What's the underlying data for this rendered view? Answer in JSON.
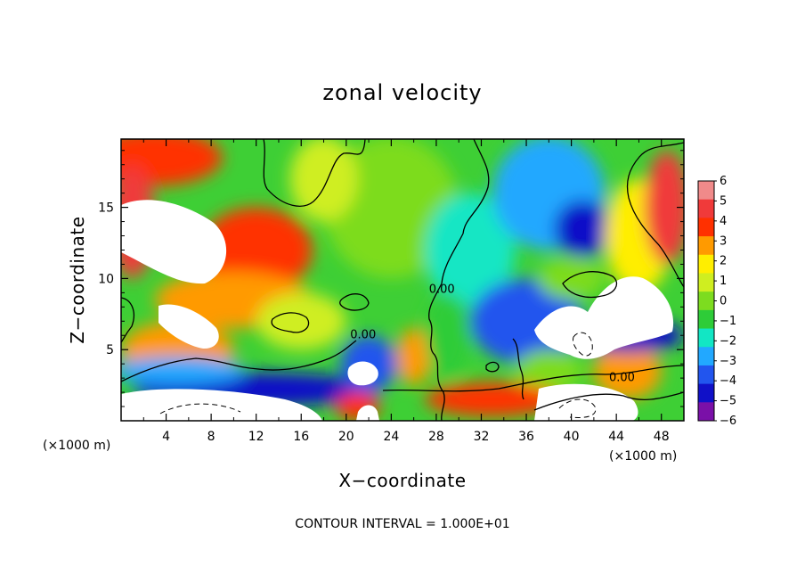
{
  "chart_data": {
    "type": "heatmap",
    "title": "zonal velocity",
    "xlabel": "X−coordinate",
    "ylabel": "Z−coordinate",
    "x_unit": "(×1000 m)",
    "x_unit_right": "(×1000 m)",
    "xlim": [
      0,
      50
    ],
    "ylim": [
      0,
      19.8
    ],
    "x_ticks": [
      4,
      8,
      12,
      16,
      20,
      24,
      28,
      32,
      36,
      40,
      44,
      48
    ],
    "y_ticks": [
      5,
      10,
      15
    ],
    "x_tick_labels": [
      "4",
      "8",
      "12",
      "16",
      "20",
      "24",
      "28",
      "32",
      "36",
      "40",
      "44",
      "48"
    ],
    "y_tick_labels": [
      "5",
      "10",
      "15"
    ],
    "colorbar": {
      "min": -6,
      "max": 6,
      "ticks": [
        6,
        5,
        4,
        3,
        2,
        1,
        0,
        -1,
        -2,
        -3,
        -4,
        -5,
        -6
      ],
      "tick_labels": [
        "6",
        "5",
        "4",
        "3",
        "2",
        "1",
        "0",
        "−1",
        "−2",
        "−3",
        "−4",
        "−5",
        "−6"
      ],
      "colors": [
        "#f08a8a",
        "#f03a3a",
        "#ff3000",
        "#ff9a00",
        "#ffee00",
        "#cfee20",
        "#7ddc1f",
        "#2ecc38",
        "#12e6c4",
        "#22a8ff",
        "#2255ee",
        "#1010c8",
        "#7a10a8"
      ]
    },
    "contour_labels": [
      {
        "text": "0.00",
        "x": 21.5,
        "y": 5.8
      },
      {
        "text": "0.00",
        "x": 28.5,
        "y": 9.0
      },
      {
        "text": "0.00",
        "x": 44.5,
        "y": 2.8
      }
    ],
    "footer": "CONTOUR INTERVAL = 1.000E+01",
    "regions": [
      {
        "x": 3,
        "y": 18.5,
        "value": 4.5,
        "rx": 6,
        "ry": 2
      },
      {
        "x": 1,
        "y": 14,
        "value": 5.2,
        "rx": 2,
        "ry": 4
      },
      {
        "x": 12,
        "y": 12,
        "value": 4,
        "rx": 5,
        "ry": 3
      },
      {
        "x": 10,
        "y": 8.5,
        "value": 3.5,
        "rx": 7,
        "ry": 2
      },
      {
        "x": 5,
        "y": 5,
        "value": 3,
        "rx": 5,
        "ry": 2
      },
      {
        "x": 24,
        "y": 15,
        "value": 0.5,
        "rx": 6,
        "ry": 5
      },
      {
        "x": 18,
        "y": 17,
        "value": 1.5,
        "rx": 3,
        "ry": 3
      },
      {
        "x": 31,
        "y": 12,
        "value": -1.5,
        "rx": 4,
        "ry": 4
      },
      {
        "x": 38,
        "y": 16,
        "value": -2.8,
        "rx": 5,
        "ry": 4
      },
      {
        "x": 41,
        "y": 13.5,
        "value": -4.5,
        "rx": 2.5,
        "ry": 2
      },
      {
        "x": 46,
        "y": 13,
        "value": 2,
        "rx": 3,
        "ry": 4
      },
      {
        "x": 48.5,
        "y": 15,
        "value": 5,
        "rx": 2,
        "ry": 4
      },
      {
        "x": 36,
        "y": 7,
        "value": -3.5,
        "rx": 5,
        "ry": 3
      },
      {
        "x": 38,
        "y": 3.5,
        "value": 0.5,
        "rx": 3,
        "ry": 1.5
      },
      {
        "x": 12,
        "y": 2.2,
        "value": -5,
        "rx": 11,
        "ry": 1.2
      },
      {
        "x": 5,
        "y": 3.5,
        "value": -3,
        "rx": 6,
        "ry": 1
      },
      {
        "x": 22,
        "y": 4,
        "value": -4,
        "rx": 2.5,
        "ry": 2
      },
      {
        "x": 33,
        "y": 1.5,
        "value": 4.5,
        "rx": 6,
        "ry": 1.2
      },
      {
        "x": 45,
        "y": 3.5,
        "value": 3.5,
        "rx": 3,
        "ry": 2
      },
      {
        "x": 45,
        "y": 6,
        "value": -5,
        "rx": 5,
        "ry": 1.2
      },
      {
        "x": 21,
        "y": 1,
        "value": 4.5,
        "rx": 2,
        "ry": 1
      },
      {
        "x": 26,
        "y": 4.5,
        "value": 3,
        "rx": 1.5,
        "ry": 2
      },
      {
        "x": 16,
        "y": 7,
        "value": 1,
        "rx": 4,
        "ry": 2
      },
      {
        "x": 40,
        "y": 10,
        "value": 0.5,
        "rx": 3,
        "ry": 1.5
      },
      {
        "x": 29,
        "y": 6,
        "value": -0.5,
        "rx": 2,
        "ry": 3
      }
    ]
  }
}
